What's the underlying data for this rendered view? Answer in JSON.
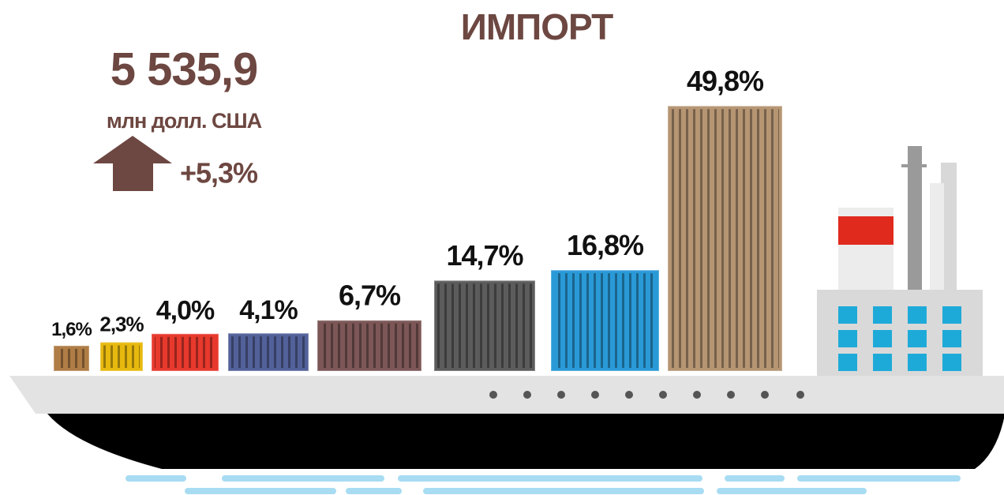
{
  "chart_data": {
    "type": "bar",
    "title": "ИМПОРТ",
    "total": {
      "value": 5535.9,
      "label": "5 535,9"
    },
    "unit": "млн долл. США",
    "change": {
      "value": 5.3,
      "label": "+5,3%"
    },
    "values": [
      1.6,
      2.3,
      4.0,
      4.1,
      6.7,
      14.7,
      16.8,
      49.8
    ],
    "value_labels": [
      "1,6%",
      "2,3%",
      "4,0%",
      "4,1%",
      "6,7%",
      "14,7%",
      "16,8%",
      "49,8%"
    ],
    "colors": [
      "#b07d46",
      "#e7b90f",
      "#e8392d",
      "#53619a",
      "#7d5757",
      "#5c5c5c",
      "#2a9ad7",
      "#b69573"
    ]
  }
}
